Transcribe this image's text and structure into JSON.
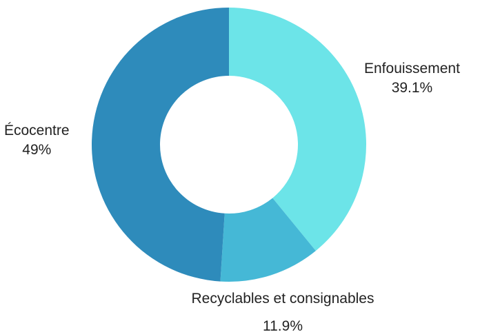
{
  "chart_data": {
    "type": "pie",
    "donut": true,
    "slices": [
      {
        "label": "Enfouissement",
        "value": 39.1,
        "display": "39.1%",
        "color": "#6ce4e8"
      },
      {
        "label": "Recyclables et consignables",
        "value": 11.9,
        "display": "11.9%",
        "color": "#45b8d6"
      },
      {
        "label": "Écocentre",
        "value": 49,
        "display": "49%",
        "color": "#2e8bbb"
      }
    ],
    "legend": "none"
  }
}
